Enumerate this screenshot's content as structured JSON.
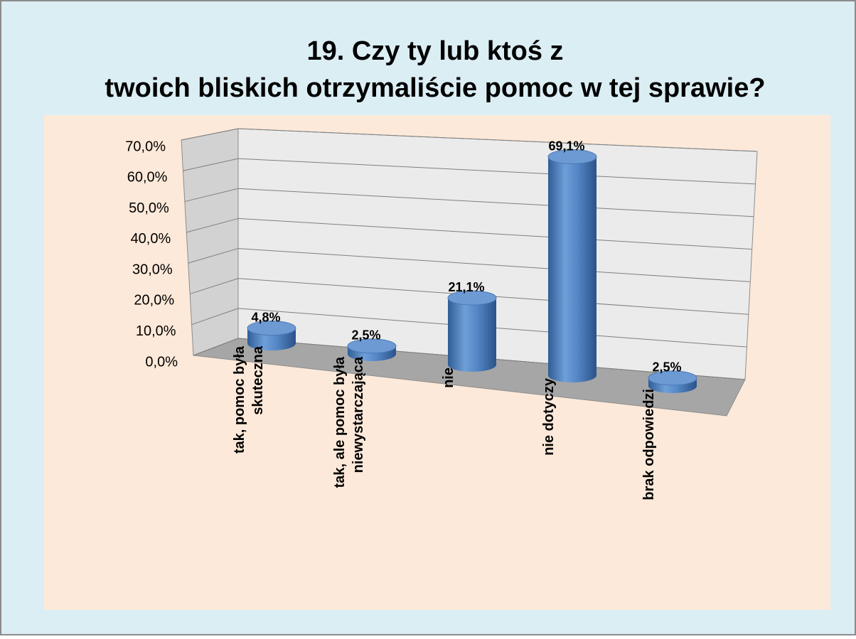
{
  "chart_data": {
    "type": "bar",
    "title": "19. Czy ty lub ktoś z twoich bliskich otrzymaliście pomoc w tej sprawie?",
    "categories": [
      "tak, pomoc była skuteczna",
      "tak, ale pomoc była niewystarczająca",
      "nie",
      "nie dotyczy",
      "brak odpowiedzi"
    ],
    "values": [
      4.8,
      2.5,
      21.1,
      69.1,
      2.5
    ],
    "value_labels": [
      "4,8%",
      "2,5%",
      "21,1%",
      "69,1%",
      "2,5%"
    ],
    "color": "#4f81bd",
    "ylim": [
      0,
      70
    ],
    "yticks": [
      {
        "value": 0,
        "label": "0,0%"
      },
      {
        "value": 10,
        "label": "10,0%"
      },
      {
        "value": 20,
        "label": "20,0%"
      },
      {
        "value": 30,
        "label": "30,0%"
      },
      {
        "value": 40,
        "label": "40,0%"
      },
      {
        "value": 50,
        "label": "50,0%"
      },
      {
        "value": 60,
        "label": "60,0%"
      },
      {
        "value": 70,
        "label": "70,0%"
      }
    ],
    "grid": true
  }
}
